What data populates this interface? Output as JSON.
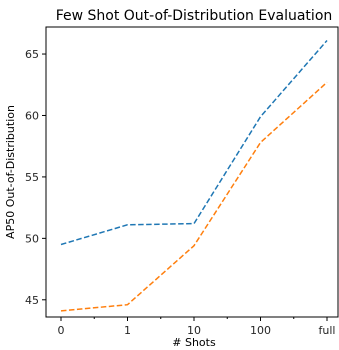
{
  "chart_data": {
    "type": "line",
    "title": "Few Shot Out-of-Distribution Evaluation",
    "xlabel": "# Shots",
    "ylabel": "AP50 Out-of-Distribution",
    "categories": [
      "0",
      "1",
      "10",
      "100",
      "full"
    ],
    "ylim": [
      43.6,
      67.2
    ],
    "yticks": [
      45,
      50,
      55,
      60,
      65
    ],
    "grid": false,
    "legend": "none",
    "series": [
      {
        "color": "#1f77b4",
        "line_style": "dashed",
        "values": [
          49.5,
          51.1,
          51.2,
          59.9,
          66.1
        ]
      },
      {
        "color": "#ff7f0e",
        "line_style": "dashed",
        "values": [
          44.1,
          44.6,
          49.4,
          57.8,
          62.7
        ]
      }
    ]
  }
}
